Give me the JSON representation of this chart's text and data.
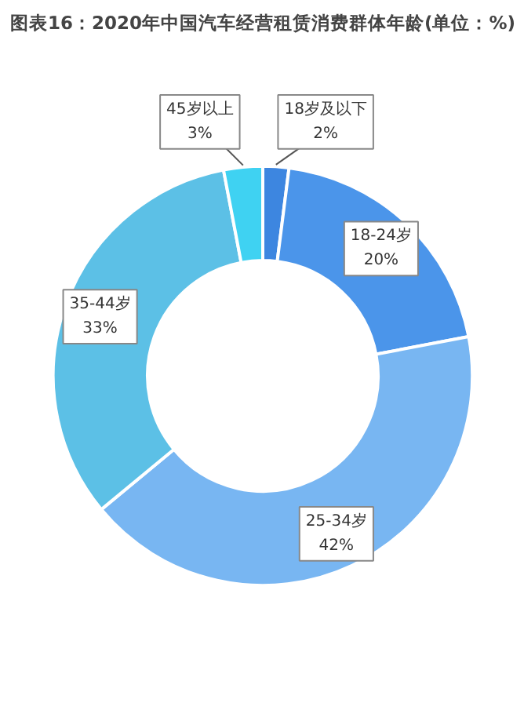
{
  "chart_data": {
    "type": "donut",
    "title": "图表16：2020年中国汽车经营租赁消费群体年龄(单位：%)",
    "categories": [
      "18岁及以下",
      "18-24岁",
      "25-34岁",
      "35-44岁",
      "45岁以上"
    ],
    "values": [
      2,
      20,
      42,
      33,
      3
    ],
    "value_labels": [
      "2%",
      "20%",
      "42%",
      "33%",
      "3%"
    ],
    "colors": [
      "#3d86e0",
      "#4b95ea",
      "#78b6f2",
      "#5cc0e6",
      "#3fd2f2"
    ]
  }
}
